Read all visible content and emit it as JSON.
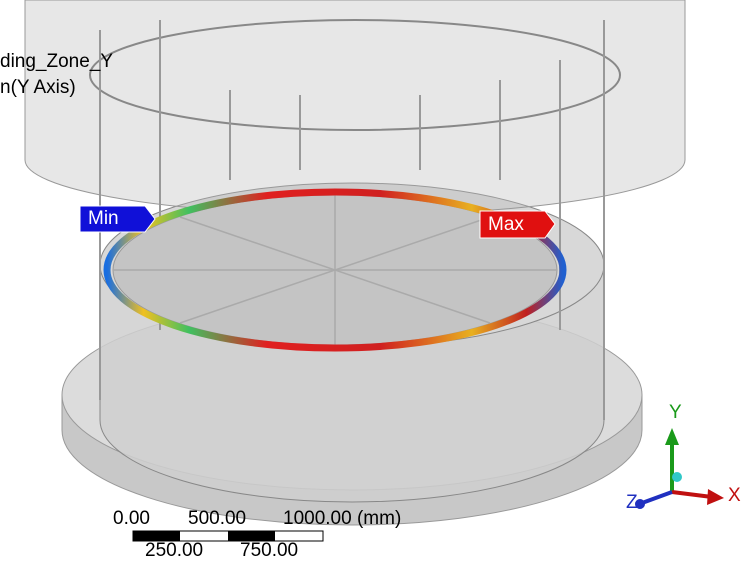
{
  "legend": {
    "title": "ding_Zone_Y",
    "subtitle": "n(Y Axis)"
  },
  "probes": {
    "min": "Min",
    "max": "Max"
  },
  "scale_bar": {
    "upper_labels": [
      "0.00",
      "500.00",
      "1000.00 (mm)"
    ],
    "lower_labels": [
      "250.00",
      "750.00"
    ]
  },
  "triad": {
    "y": "Y",
    "z": "Z",
    "x": "X"
  }
}
